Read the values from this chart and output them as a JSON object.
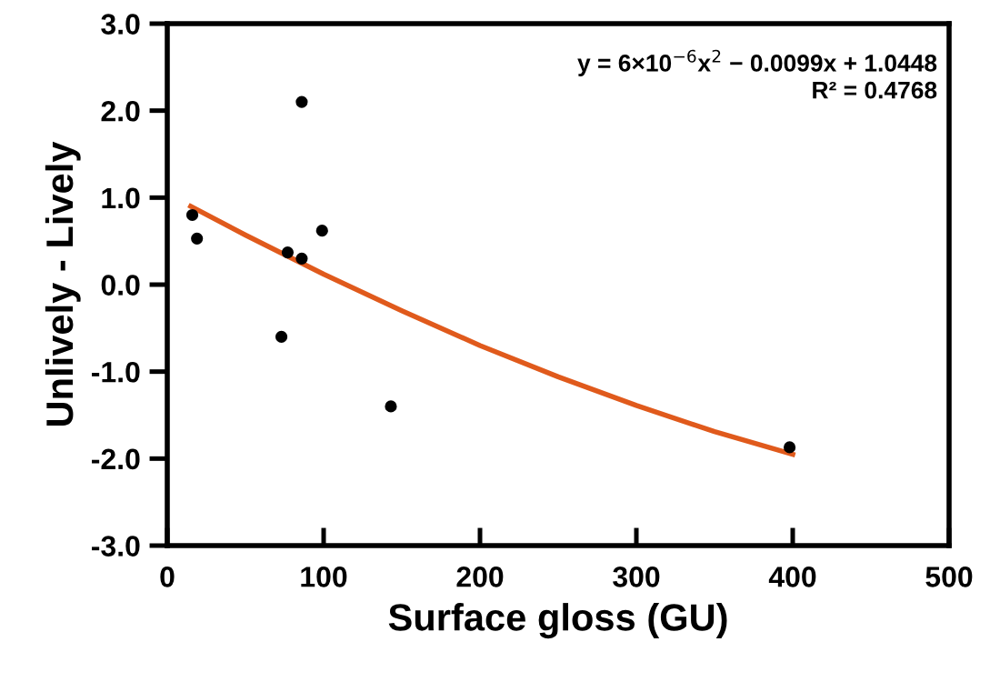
{
  "chart_data": {
    "type": "scatter",
    "xlabel": "Surface gloss (GU)",
    "ylabel": "Unlively - Lively",
    "xlim": [
      0,
      500
    ],
    "ylim": [
      -3.0,
      3.0
    ],
    "xticks": [
      0,
      100,
      200,
      300,
      400,
      500
    ],
    "yticks": [
      {
        "value": -3.0,
        "label": "-3.0"
      },
      {
        "value": -2.0,
        "label": "-2.0"
      },
      {
        "value": -1.0,
        "label": "-1.0"
      },
      {
        "value": 0.0,
        "label": "0.0"
      },
      {
        "value": 1.0,
        "label": "1.0"
      },
      {
        "value": 2.0,
        "label": "2.0"
      },
      {
        "value": 3.0,
        "label": "3.0"
      }
    ],
    "grid": false,
    "series": [
      {
        "color": "#000000",
        "marker": "circle",
        "x": [
          16,
          19,
          73,
          77,
          86,
          86,
          99,
          143,
          398
        ],
        "values": [
          0.8,
          0.53,
          -0.6,
          0.37,
          0.3,
          2.1,
          0.62,
          -1.4,
          -1.87
        ]
      },
      {
        "type": "line",
        "color": "#e05a1c",
        "line_style": "solid",
        "x": [
          15,
          50,
          100,
          150,
          200,
          250,
          300,
          350,
          400
        ],
        "values": [
          0.9,
          0.57,
          0.12,
          -0.3,
          -0.7,
          -1.06,
          -1.39,
          -1.69,
          -1.95
        ]
      }
    ],
    "annotations": [
      "y = 6×10$^{−6}$x$^{2}$ − 0.0099x + 1.0448",
      "R² = 0.4768"
    ]
  }
}
